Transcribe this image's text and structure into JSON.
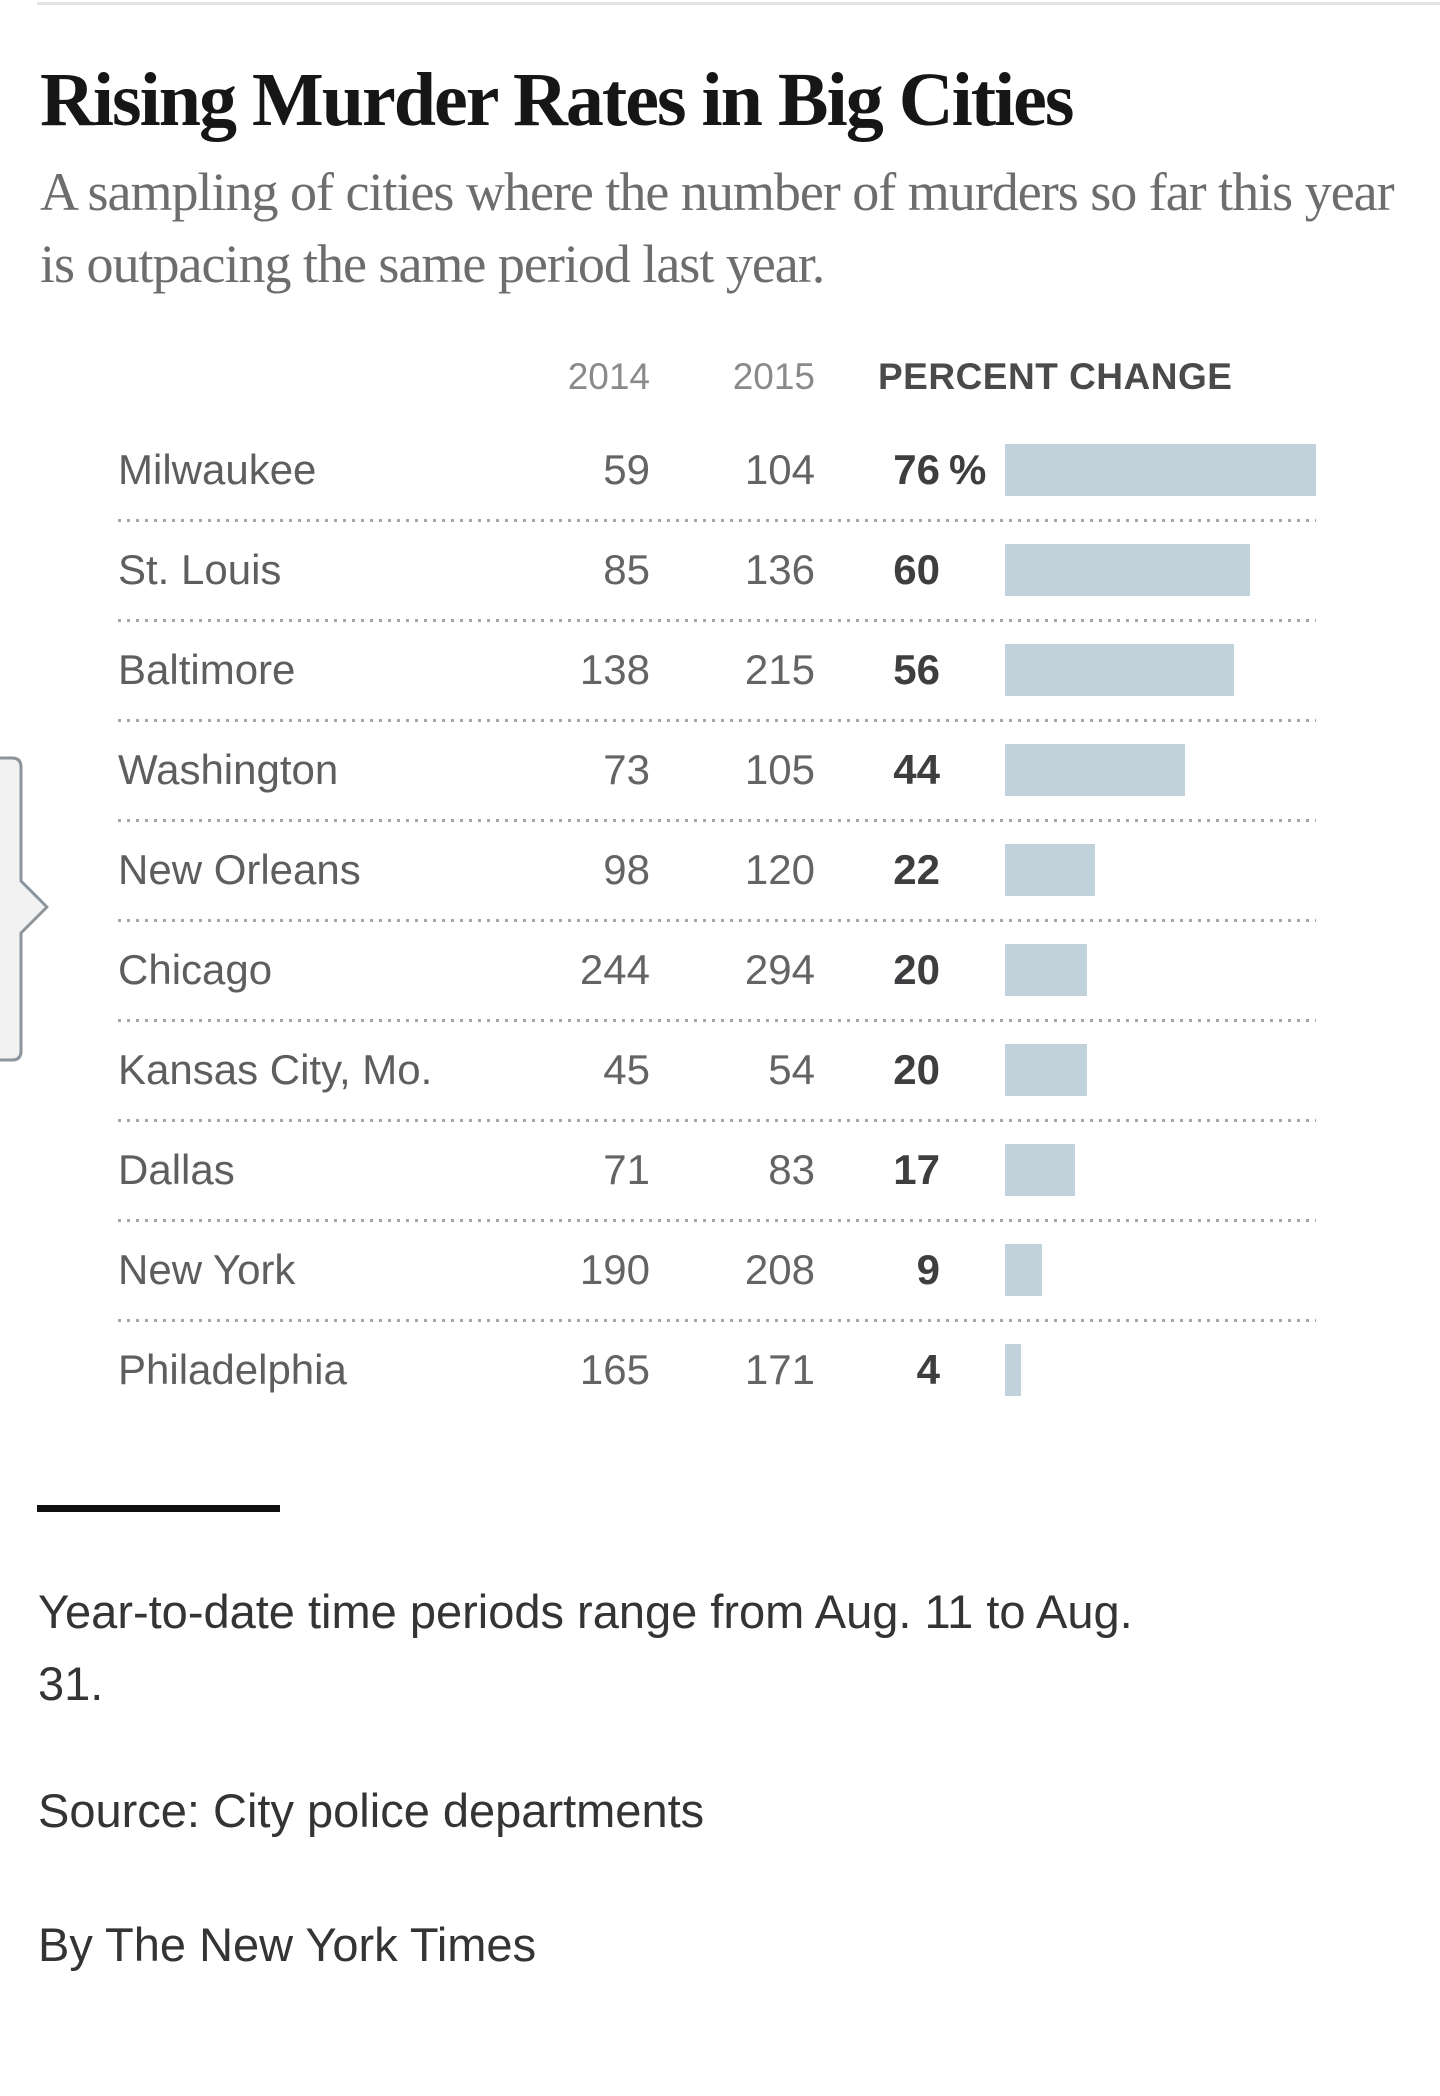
{
  "page": {
    "title": "Rising Murder Rates in Big Cities",
    "subtitle": "A sampling of cities where the number of murders so far this year is outpacing the same period last year."
  },
  "header": {
    "col2014": "2014",
    "col2015": "2015",
    "colpct": "PERCENT CHANGE"
  },
  "table": {
    "rows": [
      {
        "city": "Milwaukee",
        "v2014": 59,
        "v2015": 104,
        "pct": 76,
        "pct_suffix": "%"
      },
      {
        "city": "St. Louis",
        "v2014": 85,
        "v2015": 136,
        "pct": 60,
        "pct_suffix": ""
      },
      {
        "city": "Baltimore",
        "v2014": 138,
        "v2015": 215,
        "pct": 56,
        "pct_suffix": ""
      },
      {
        "city": "Washington",
        "v2014": 73,
        "v2015": 105,
        "pct": 44,
        "pct_suffix": ""
      },
      {
        "city": "New Orleans",
        "v2014": 98,
        "v2015": 120,
        "pct": 22,
        "pct_suffix": ""
      },
      {
        "city": "Chicago",
        "v2014": 244,
        "v2015": 294,
        "pct": 20,
        "pct_suffix": ""
      },
      {
        "city": "Kansas City, Mo.",
        "v2014": 45,
        "v2015": 54,
        "pct": 20,
        "pct_suffix": ""
      },
      {
        "city": "Dallas",
        "v2014": 71,
        "v2015": 83,
        "pct": 17,
        "pct_suffix": ""
      },
      {
        "city": "New York",
        "v2014": 190,
        "v2015": 208,
        "pct": 9,
        "pct_suffix": ""
      },
      {
        "city": "Philadelphia",
        "v2014": 165,
        "v2015": 171,
        "pct": 4,
        "pct_suffix": ""
      }
    ]
  },
  "chart_data": {
    "type": "bar",
    "title": "Rising Murder Rates in Big Cities",
    "subtitle": "A sampling of cities where the number of murders so far this year is outpacing the same period last year.",
    "categories": [
      "Milwaukee",
      "St. Louis",
      "Baltimore",
      "Washington",
      "New Orleans",
      "Chicago",
      "Kansas City, Mo.",
      "Dallas",
      "New York",
      "Philadelphia"
    ],
    "series": [
      {
        "name": "2014",
        "values": [
          59,
          85,
          138,
          73,
          98,
          244,
          45,
          71,
          190,
          165
        ]
      },
      {
        "name": "2015",
        "values": [
          104,
          136,
          215,
          105,
          120,
          294,
          54,
          83,
          208,
          171
        ]
      },
      {
        "name": "Percent change",
        "values": [
          76,
          60,
          56,
          44,
          22,
          20,
          20,
          17,
          9,
          4
        ]
      }
    ],
    "bar_series": "Percent change",
    "orientation": "horizontal",
    "xlim": [
      0,
      76
    ],
    "grid": false,
    "legend": false,
    "bar_color": "#c2d2db"
  },
  "footer": {
    "note_line1": "Year-to-date time periods range from Aug. 11 to Aug.",
    "note_line2": "31.",
    "source": "Source: City police departments",
    "byline": "By The New York Times"
  },
  "colors": {
    "bar": "#c2d2db",
    "title_text": "#161616",
    "subtitle_text": "#6d6d6d",
    "body_text": "#5d5e60",
    "pct_text": "#3e3e40",
    "separator_dots": "#a6a6a6",
    "hairline": "#e3e3e3",
    "handle_stroke": "#8c949c",
    "handle_fill": "#f2f2f2"
  }
}
